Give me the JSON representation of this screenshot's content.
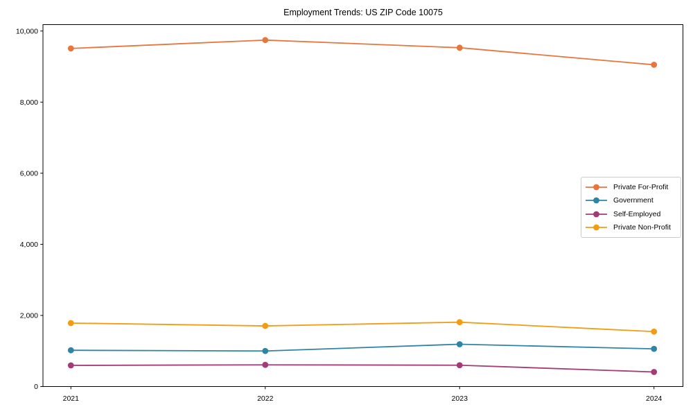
{
  "figure": {
    "background_color": "#ffffff",
    "text_color": "#000000",
    "spine_color": "#000000"
  },
  "chart_data": {
    "type": "line",
    "title": "Employment Trends: US ZIP Code 10075",
    "xlabel": "",
    "ylabel": "",
    "x": [
      2021,
      2022,
      2023,
      2024
    ],
    "xtick_labels": [
      "2021",
      "2022",
      "2023",
      "2024"
    ],
    "yticks": [
      0,
      2000,
      4000,
      6000,
      8000,
      10000
    ],
    "ytick_labels": [
      "0",
      "2,000",
      "4,000",
      "6,000",
      "8,000",
      "10,000"
    ],
    "ylim": [
      0,
      10180
    ],
    "grid": false,
    "marker": "circle",
    "legend_position": "middle-right",
    "series": [
      {
        "name": "Private For-Profit",
        "color": "#E8763C",
        "values": [
          9510,
          9745,
          9530,
          9050
        ]
      },
      {
        "name": "Government",
        "color": "#2F84A5",
        "values": [
          1020,
          1000,
          1190,
          1060
        ]
      },
      {
        "name": "Self-Employed",
        "color": "#A43B76",
        "values": [
          595,
          610,
          600,
          410
        ]
      },
      {
        "name": "Private Non-Profit",
        "color": "#F39C12",
        "values": [
          1785,
          1705,
          1810,
          1545
        ]
      }
    ]
  }
}
